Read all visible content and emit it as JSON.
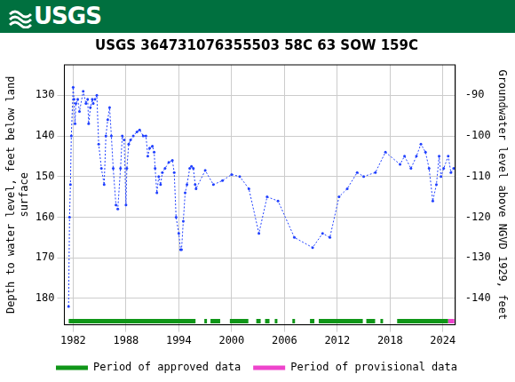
{
  "header": {
    "logo_text": "USGS"
  },
  "chart_data": {
    "type": "line",
    "title": "USGS 364731076355503 58C 63 SOW 159C",
    "y_label": [
      "Depth to water level, feet below land",
      "surface"
    ],
    "y2_label": "Groundwater level above NGVD 1929, feet",
    "x": [
      1981.48,
      1981.59,
      1981.69,
      1981.79,
      1982.0,
      1982.1,
      1982.21,
      1982.31,
      1982.52,
      1982.72,
      1983.14,
      1983.45,
      1983.65,
      1983.76,
      1983.96,
      1984.17,
      1984.28,
      1984.48,
      1984.69,
      1984.9,
      1985.21,
      1985.52,
      1985.72,
      1985.93,
      1986.14,
      1986.34,
      1986.55,
      1986.86,
      1987.07,
      1987.38,
      1987.58,
      1987.79,
      1988.0,
      1988.1,
      1988.31,
      1988.52,
      1988.83,
      1989.24,
      1989.55,
      1989.96,
      1990.27,
      1990.48,
      1990.69,
      1991.0,
      1991.2,
      1991.31,
      1991.51,
      1991.72,
      1991.93,
      1992.13,
      1992.44,
      1992.86,
      1993.27,
      1993.48,
      1993.69,
      1994.0,
      1994.2,
      1994.31,
      1994.51,
      1994.72,
      1994.93,
      1995.24,
      1995.44,
      1995.65,
      1995.86,
      1995.96,
      1997.0,
      1997.93,
      1998.96,
      2000.0,
      2000.92,
      2001.96,
      2003.1,
      2004.03,
      2005.27,
      2007.13,
      2009.2,
      2010.33,
      2011.16,
      2012.2,
      2013.13,
      2014.26,
      2015.0,
      2016.33,
      2017.47,
      2019.13,
      2019.64,
      2020.37,
      2020.99,
      2021.5,
      2022.02,
      2022.43,
      2022.85,
      2023.26,
      2023.57,
      2023.78,
      2024.09,
      2024.6,
      2024.91,
      2025.22
    ],
    "series": [
      {
        "name": "Depth to water level",
        "color": "#2040ff",
        "marker": "circle",
        "line_style": "dotted",
        "values": [
          182,
          160,
          152,
          140,
          128,
          131,
          137,
          132,
          131,
          134,
          129,
          132,
          131,
          137,
          133,
          131,
          132,
          131,
          130,
          142,
          148,
          152,
          140,
          136,
          133,
          140,
          148,
          157,
          158,
          148,
          140,
          141,
          157,
          148,
          142,
          141,
          140,
          139,
          138.5,
          140,
          140,
          145,
          143,
          142.5,
          144,
          148,
          154,
          150,
          152,
          149,
          148,
          146.5,
          146,
          149,
          160,
          164,
          168,
          168,
          161,
          154,
          152,
          148,
          147.5,
          148,
          152,
          153,
          148.5,
          152,
          151,
          149.5,
          150,
          153,
          164,
          155,
          156,
          165,
          167.5,
          164,
          165,
          155,
          153,
          149,
          150,
          149,
          144,
          147,
          145,
          148,
          145,
          142,
          144,
          148,
          156,
          152,
          145,
          150,
          148,
          145,
          149,
          148
        ]
      }
    ],
    "xlim": [
      1981.0,
      2025.4
    ],
    "xticks": [
      1982,
      1988,
      1994,
      2000,
      2006,
      2012,
      2018,
      2024
    ],
    "ylim": [
      122.5,
      186.5
    ],
    "yticks": [
      130,
      140,
      150,
      160,
      170,
      180
    ],
    "y2lim": [
      -146.5,
      -82.5
    ],
    "y2ticks": [
      -140,
      -130,
      -120,
      -110,
      -100,
      -90
    ],
    "grid": true,
    "legend": "bottom",
    "periods": [
      {
        "name": "Period of approved data",
        "color": "#109618",
        "ranges": [
          [
            1981.5,
            1995.9
          ],
          [
            1996.9,
            1997.2
          ],
          [
            1997.6,
            1998.7
          ],
          [
            1999.8,
            2001.9
          ],
          [
            2002.8,
            2003.3
          ],
          [
            2003.8,
            2004.3
          ],
          [
            2004.9,
            2005.2
          ],
          [
            2006.9,
            2007.2
          ],
          [
            2008.9,
            2009.4
          ],
          [
            2009.9,
            2014.9
          ],
          [
            2015.3,
            2016.3
          ],
          [
            2016.9,
            2017.2
          ],
          [
            2018.8,
            2024.6
          ]
        ]
      },
      {
        "name": "Period of provisional data",
        "color": "#ee44cc",
        "ranges": [
          [
            2024.6,
            2025.3
          ]
        ]
      }
    ]
  }
}
